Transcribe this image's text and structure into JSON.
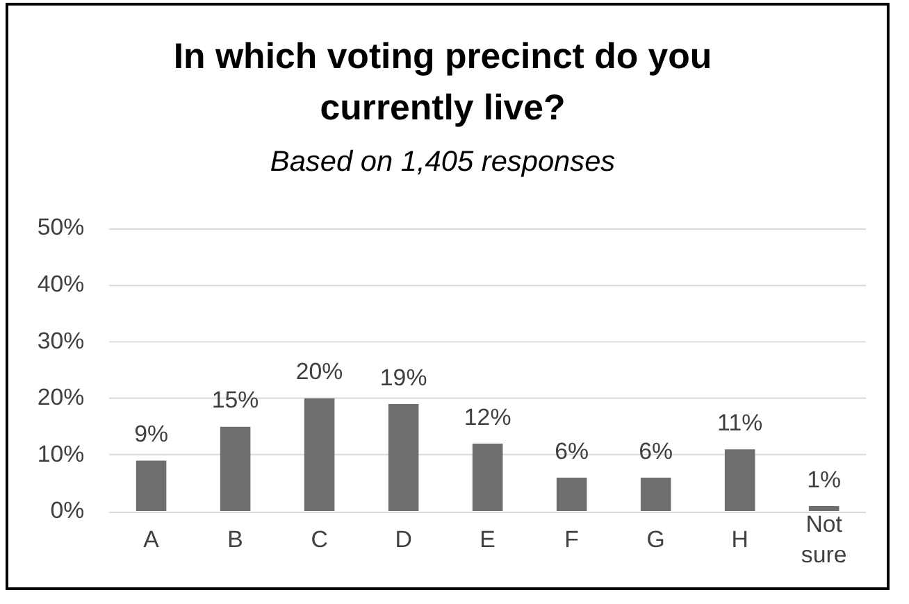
{
  "chart_data": {
    "type": "bar",
    "title": "In which voting precinct do you currently live?",
    "subtitle": "Based on 1,405 responses",
    "categories": [
      "A",
      "B",
      "C",
      "D",
      "E",
      "F",
      "G",
      "H",
      "Not sure"
    ],
    "values": [
      9,
      15,
      20,
      19,
      12,
      6,
      6,
      11,
      1
    ],
    "value_labels": [
      "9%",
      "15%",
      "20%",
      "19%",
      "12%",
      "6%",
      "6%",
      "11%",
      "1%"
    ],
    "color": "#6e6e6e",
    "ylim": [
      0,
      50
    ],
    "yticks": [
      {
        "value": 0,
        "label": "0%"
      },
      {
        "value": 10,
        "label": "10%"
      },
      {
        "value": 20,
        "label": "20%"
      },
      {
        "value": 30,
        "label": "30%"
      },
      {
        "value": 40,
        "label": "40%"
      },
      {
        "value": 50,
        "label": "50%"
      }
    ],
    "grid": "y"
  }
}
